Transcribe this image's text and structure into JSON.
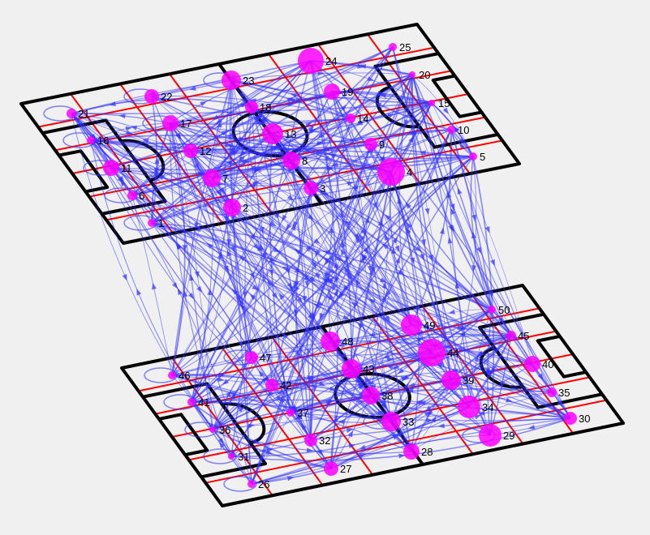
{
  "colors": {
    "background": "#f0f0f0",
    "field_outline": "#000000",
    "grid_lines": "#ff0000",
    "edges": "#3333ff",
    "nodes": "#ff00ff"
  },
  "node_labels": [
    "1",
    "2",
    "3",
    "4",
    "5",
    "6",
    "7",
    "8",
    "9",
    "10",
    "11",
    "12",
    "13",
    "14",
    "15",
    "16",
    "17",
    "18",
    "19",
    "20",
    "21",
    "22",
    "23",
    "24",
    "25",
    "26",
    "27",
    "28",
    "29",
    "30",
    "31",
    "32",
    "33",
    "34",
    "35",
    "36",
    "37",
    "38",
    "39",
    "40",
    "41",
    "42",
    "43",
    "44",
    "45",
    "46",
    "47",
    "48",
    "49",
    "50"
  ],
  "layers": [
    {
      "id": "upper",
      "nodes": "1-25"
    },
    {
      "id": "lower",
      "nodes": "26-50"
    }
  ]
}
